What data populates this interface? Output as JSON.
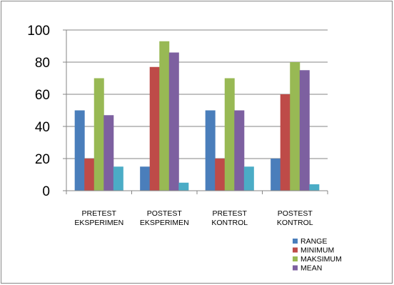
{
  "chart_data": {
    "type": "bar",
    "categories": [
      [
        "PRETEST",
        "EKSPERIMEN"
      ],
      [
        "POSTEST",
        "EKSPERIMEN"
      ],
      [
        "PRETEST",
        "KONTROL"
      ],
      [
        "POSTEST",
        "KONTROL"
      ]
    ],
    "series": [
      {
        "name": "RANGE",
        "color": "#4a7ebb",
        "values": [
          50,
          15,
          50,
          20
        ]
      },
      {
        "name": "MINIMUM",
        "color": "#be4b48",
        "values": [
          20,
          77,
          20,
          60
        ]
      },
      {
        "name": "MAKSIMUM",
        "color": "#98b954",
        "values": [
          70,
          93,
          70,
          80
        ]
      },
      {
        "name": "MEAN",
        "color": "#7d60a0",
        "values": [
          47,
          86,
          50,
          75
        ]
      },
      {
        "name": "",
        "color": "#4bacc6",
        "values": [
          15,
          5,
          15,
          4
        ]
      }
    ],
    "yticks": [
      0,
      20,
      40,
      60,
      80,
      100
    ],
    "ylim": [
      0,
      100
    ],
    "grid": true,
    "legend_position": "bottom-right"
  }
}
